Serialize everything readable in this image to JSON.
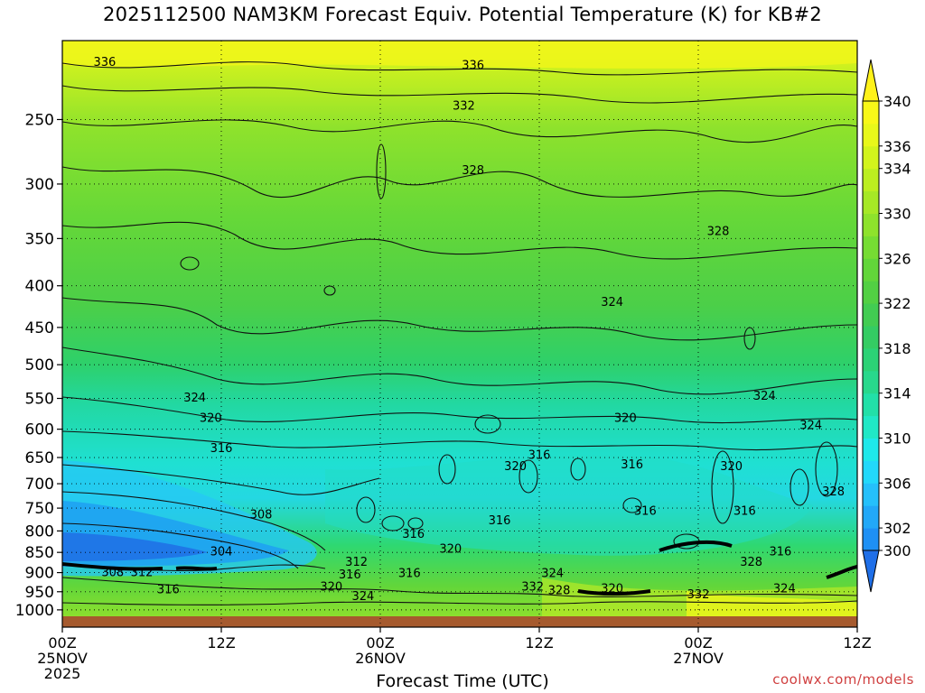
{
  "title": "2025112500 NAM3KM Forecast Equiv. Potential Temperature (K) for KB#2",
  "credit": "coolwx.com/models",
  "chart_data": {
    "type": "contour",
    "variable": "Equiv. Potential Temperature (K)",
    "xlabel": "Forecast Time (UTC)",
    "ylabel": "",
    "x_axis": {
      "range_hours": [
        0,
        60
      ],
      "ticks": [
        {
          "hour": 0,
          "label": "00Z",
          "date": "25NOV",
          "year": "2025"
        },
        {
          "hour": 12,
          "label": "12Z",
          "date": "",
          "year": ""
        },
        {
          "hour": 24,
          "label": "00Z",
          "date": "26NOV",
          "year": ""
        },
        {
          "hour": 36,
          "label": "12Z",
          "date": "",
          "year": ""
        },
        {
          "hour": 48,
          "label": "00Z",
          "date": "27NOV",
          "year": ""
        },
        {
          "hour": 60,
          "label": "12Z",
          "date": "",
          "year": ""
        }
      ]
    },
    "y_axis": {
      "scale": "log",
      "range": [
        1050,
        200
      ],
      "ticks": [
        250,
        300,
        350,
        400,
        450,
        500,
        550,
        600,
        650,
        700,
        750,
        800,
        850,
        900,
        950,
        1000
      ]
    },
    "grid": true,
    "colorbar": {
      "placement": "right",
      "levels": [
        298,
        300,
        302,
        304,
        306,
        308,
        310,
        312,
        314,
        316,
        318,
        320,
        322,
        324,
        326,
        328,
        330,
        332,
        334,
        336,
        338,
        340,
        342
      ],
      "labels": [
        300,
        302,
        306,
        310,
        314,
        318,
        322,
        326,
        330,
        334,
        336,
        340
      ],
      "colors": [
        "#1f6fe8",
        "#1e90f5",
        "#22a8f8",
        "#25c0fb",
        "#22d8fb",
        "#1fe8ea",
        "#20e8c6",
        "#22e0a8",
        "#28d88c",
        "#2cd276",
        "#34cc63",
        "#42cc52",
        "#52d043",
        "#62d63a",
        "#76dc33",
        "#8ee22c",
        "#a6e826",
        "#bcee20",
        "#d2f41c",
        "#e8f81a",
        "#f8f818",
        "#fff21a"
      ]
    },
    "contour_labels": [
      {
        "value": "336",
        "hour": 3.2,
        "p": 212
      },
      {
        "value": "336",
        "hour": 31,
        "p": 214
      },
      {
        "value": "332",
        "hour": 30.3,
        "p": 240
      },
      {
        "value": "328",
        "hour": 31,
        "p": 288
      },
      {
        "value": "328",
        "hour": 49.5,
        "p": 342
      },
      {
        "value": "324",
        "hour": 41.5,
        "p": 418
      },
      {
        "value": "324",
        "hour": 10,
        "p": 548
      },
      {
        "value": "324",
        "hour": 53,
        "p": 545
      },
      {
        "value": "320",
        "hour": 11.2,
        "p": 580
      },
      {
        "value": "320",
        "hour": 42.5,
        "p": 580
      },
      {
        "value": "324",
        "hour": 56.5,
        "p": 592
      },
      {
        "value": "316",
        "hour": 12,
        "p": 632
      },
      {
        "value": "316",
        "hour": 36,
        "p": 644
      },
      {
        "value": "320",
        "hour": 34.2,
        "p": 665
      },
      {
        "value": "316",
        "hour": 43,
        "p": 662
      },
      {
        "value": "320",
        "hour": 50.5,
        "p": 665
      },
      {
        "value": "328",
        "hour": 58.2,
        "p": 714
      },
      {
        "value": "308",
        "hour": 15,
        "p": 762
      },
      {
        "value": "316",
        "hour": 44,
        "p": 755
      },
      {
        "value": "316",
        "hour": 51.5,
        "p": 755
      },
      {
        "value": "316",
        "hour": 33,
        "p": 775
      },
      {
        "value": "316",
        "hour": 26.5,
        "p": 805
      },
      {
        "value": "320",
        "hour": 29.3,
        "p": 840
      },
      {
        "value": "304",
        "hour": 12,
        "p": 846
      },
      {
        "value": "316",
        "hour": 54.2,
        "p": 846
      },
      {
        "value": "312",
        "hour": 22.2,
        "p": 872
      },
      {
        "value": "328",
        "hour": 52,
        "p": 872
      },
      {
        "value": "308",
        "hour": 3.8,
        "p": 897
      },
      {
        "value": "312",
        "hour": 6,
        "p": 897
      },
      {
        "value": "316",
        "hour": 21.7,
        "p": 903
      },
      {
        "value": "316",
        "hour": 26.2,
        "p": 900
      },
      {
        "value": "324",
        "hour": 37,
        "p": 900
      },
      {
        "value": "320",
        "hour": 20.3,
        "p": 935
      },
      {
        "value": "332",
        "hour": 35.5,
        "p": 935
      },
      {
        "value": "328",
        "hour": 37.5,
        "p": 945
      },
      {
        "value": "320",
        "hour": 41.5,
        "p": 940
      },
      {
        "value": "316",
        "hour": 8,
        "p": 942
      },
      {
        "value": "324",
        "hour": 22.7,
        "p": 960
      },
      {
        "value": "332",
        "hour": 48,
        "p": 955
      },
      {
        "value": "324",
        "hour": 54.5,
        "p": 940
      }
    ]
  }
}
